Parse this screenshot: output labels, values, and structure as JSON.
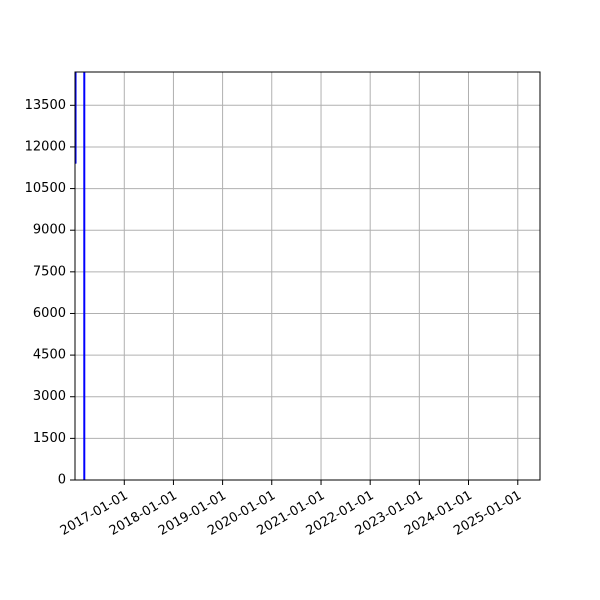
{
  "chart_data": {
    "type": "line",
    "title": "",
    "xlabel": "",
    "ylabel": "",
    "x_type": "date",
    "xlim": [
      "2016-01-01",
      "2025-06-15"
    ],
    "ylim": [
      0,
      14700
    ],
    "x_ticks": [
      "2017-01-01",
      "2018-01-01",
      "2019-01-01",
      "2020-01-01",
      "2021-01-01",
      "2022-01-01",
      "2023-01-01",
      "2024-01-01",
      "2025-01-01"
    ],
    "y_ticks": [
      0,
      1500,
      3000,
      4500,
      6000,
      7500,
      9000,
      10500,
      12000,
      13500
    ],
    "grid": true,
    "legend": "none",
    "series": [
      {
        "color": "#0000ff",
        "segments": [
          {
            "x": [
              "2016-01-01",
              "2016-01-01"
            ],
            "y": [
              11400,
              14700
            ]
          },
          {
            "x": [
              "2016-01-05",
              "2016-01-05"
            ],
            "y": [
              11400,
              14700
            ]
          },
          {
            "x": [
              "2016-01-01",
              "2016-01-05"
            ],
            "y": [
              14700,
              14700
            ]
          },
          {
            "x": [
              "2016-03-10",
              "2016-03-10"
            ],
            "y": [
              0,
              14700
            ]
          }
        ]
      }
    ]
  }
}
